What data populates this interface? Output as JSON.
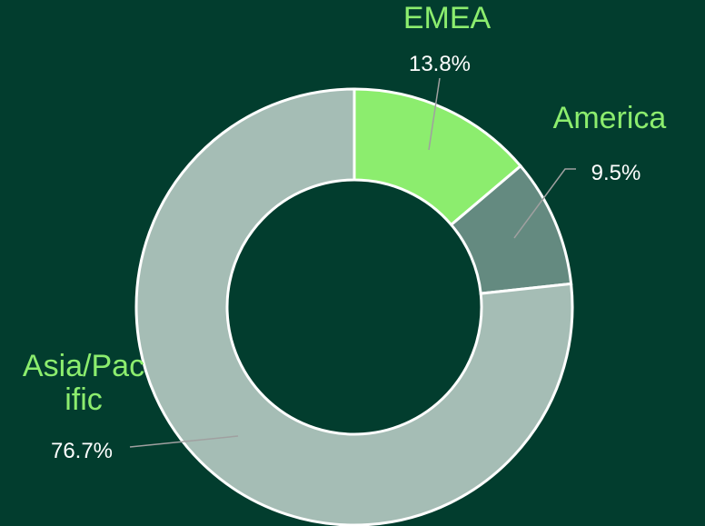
{
  "chart_data": {
    "type": "donut",
    "categories": [
      "EMEA",
      "America",
      "Asia/Pacific"
    ],
    "values": [
      13.8,
      9.5,
      76.7
    ],
    "value_labels": [
      "13.8%",
      "9.5%",
      "76.7%"
    ],
    "colors": [
      "#8ced6e",
      "#648a80",
      "#a5bdb5"
    ],
    "label_color": "#8ced6e",
    "background": "#023d2e"
  }
}
